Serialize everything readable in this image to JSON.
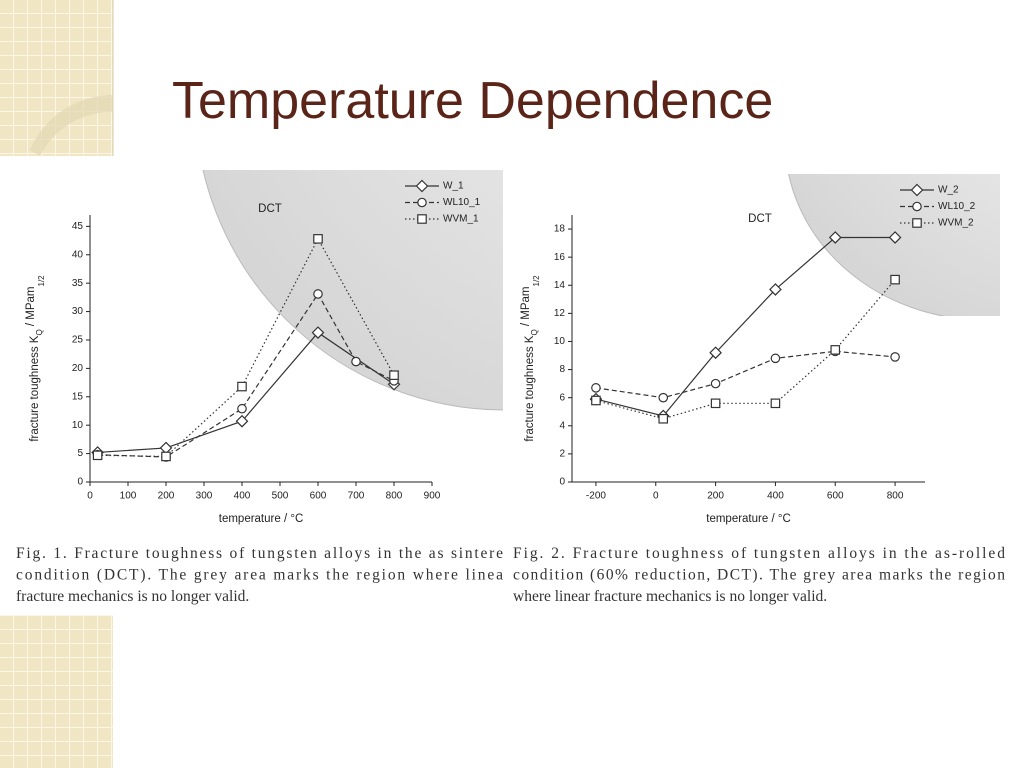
{
  "title": "Temperature Dependence",
  "chart_data": [
    {
      "type": "line",
      "xlabel": "temperature / °C",
      "ylabel": [
        "fracture toughness K",
        "Q",
        " / MPam",
        "1/2"
      ],
      "annotation": "DCT",
      "caption": [
        "Fig. 1. Fracture toughness of tungsten alloys in the as sintere",
        "condition (DCT). The grey area marks the region where linea",
        "fracture mechanics is no longer valid."
      ],
      "xlim": [
        0,
        900
      ],
      "xticks": [
        0,
        100,
        200,
        300,
        400,
        500,
        600,
        700,
        800,
        900
      ],
      "ylim": [
        0,
        47
      ],
      "yticks": [
        0,
        5,
        10,
        15,
        20,
        25,
        30,
        35,
        40,
        45
      ],
      "legend": "upper right",
      "series": [
        {
          "name": "W_1",
          "color": "#333333",
          "marker": "diamond",
          "linestyle": "solid",
          "x": [
            20,
            200,
            400,
            600,
            800
          ],
          "values": [
            5.2,
            6,
            10.7,
            26.3,
            17.2
          ]
        },
        {
          "name": "WL10_1",
          "color": "#333333",
          "marker": "circle",
          "linestyle": "dashed",
          "x": [
            20,
            200,
            400,
            600,
            700,
            800
          ],
          "values": [
            4.8,
            4.4,
            12.9,
            33.1,
            21.2,
            17.8
          ]
        },
        {
          "name": "WVM_1",
          "color": "#333333",
          "marker": "square",
          "linestyle": "dotted",
          "x": [
            20,
            200,
            400,
            600,
            800
          ],
          "values": [
            4.7,
            4.5,
            16.8,
            42.8,
            18.8
          ]
        }
      ]
    },
    {
      "type": "line",
      "xlabel": "temperature / °C",
      "ylabel": [
        "fracture toughness K",
        "Q",
        " / MPam",
        "1/2"
      ],
      "annotation": "DCT",
      "caption": [
        "Fig. 2. Fracture toughness of tungsten alloys in the as-rolled",
        "condition (60% reduction, DCT). The grey area marks the region",
        "where linear fracture mechanics is no longer valid."
      ],
      "xlim": [
        -280,
        900
      ],
      "xticks": [
        -200,
        0,
        200,
        400,
        600,
        800
      ],
      "ylim": [
        0,
        19
      ],
      "yticks": [
        0,
        2,
        4,
        6,
        8,
        10,
        12,
        14,
        16,
        18
      ],
      "legend": "upper right",
      "series": [
        {
          "name": "W_2",
          "color": "#333333",
          "marker": "diamond",
          "linestyle": "solid",
          "x": [
            -200,
            25,
            200,
            400,
            600,
            800
          ],
          "values": [
            5.9,
            4.7,
            9.2,
            13.7,
            17.4,
            17.4
          ]
        },
        {
          "name": "WL10_2",
          "color": "#333333",
          "marker": "circle",
          "linestyle": "dashed",
          "x": [
            -200,
            25,
            200,
            400,
            600,
            800
          ],
          "values": [
            6.7,
            6.0,
            7.0,
            8.8,
            9.3,
            8.9
          ]
        },
        {
          "name": "WVM_2",
          "color": "#333333",
          "marker": "square",
          "linestyle": "dotted",
          "x": [
            -200,
            25,
            200,
            400,
            600,
            800
          ],
          "values": [
            5.8,
            4.5,
            5.6,
            5.6,
            9.4,
            14.4
          ]
        }
      ]
    }
  ]
}
